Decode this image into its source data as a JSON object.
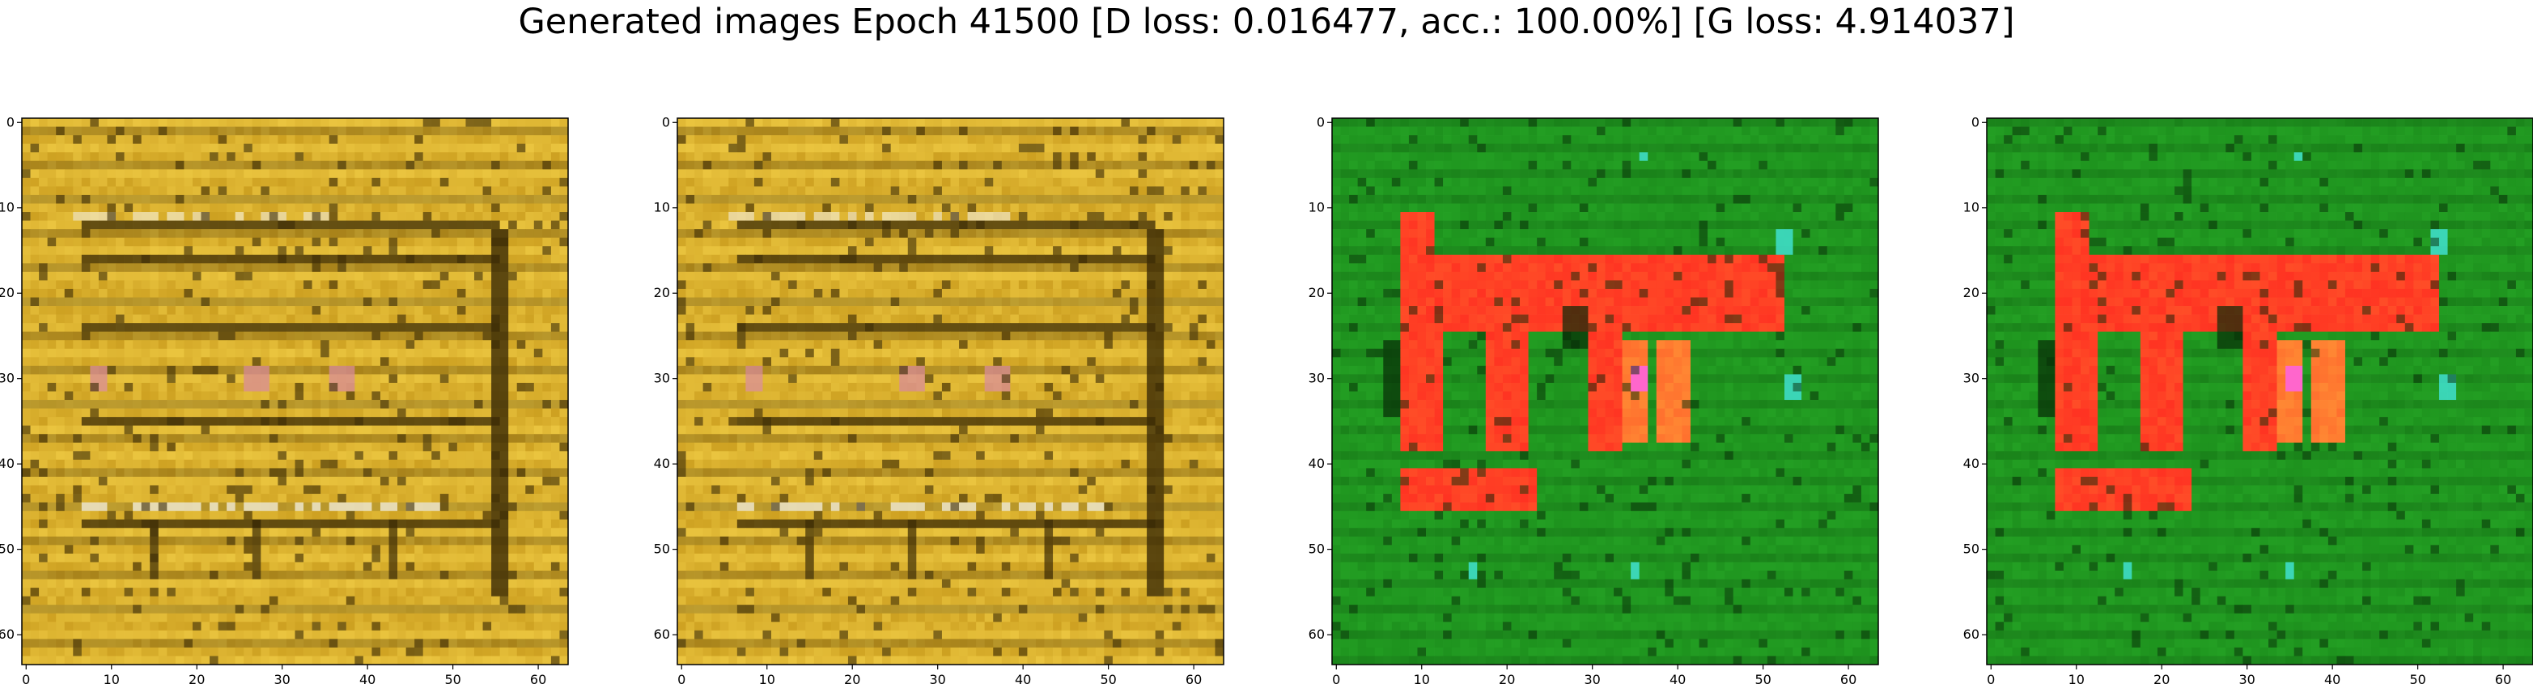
{
  "figure": {
    "title": "Generated images Epoch 41500 [D loss: 0.016477, acc.: 100.00%] [G loss: 4.914037]"
  },
  "chart_data": [
    {
      "type": "heatmap",
      "title": "",
      "xlabel": "",
      "ylabel": "",
      "xlim": [
        -0.5,
        63.5
      ],
      "ylim": [
        63.5,
        -0.5
      ],
      "x_ticks": [
        "0",
        "10",
        "20",
        "30",
        "40",
        "50",
        "60"
      ],
      "y_ticks": [
        "0",
        "10",
        "20",
        "30",
        "40",
        "50",
        "60"
      ],
      "grid": false,
      "palette": {
        "base": "#b8860b",
        "dark": "#3a2a05",
        "light": "#f5d24a",
        "highlight": "#f4f0e0",
        "pink": "#d98aa0"
      }
    },
    {
      "type": "heatmap",
      "title": "",
      "xlabel": "",
      "ylabel": "",
      "xlim": [
        -0.5,
        63.5
      ],
      "ylim": [
        63.5,
        -0.5
      ],
      "x_ticks": [
        "0",
        "10",
        "20",
        "30",
        "40",
        "50",
        "60"
      ],
      "y_ticks": [
        "0",
        "10",
        "20",
        "30",
        "40",
        "50",
        "60"
      ],
      "grid": false,
      "palette": {
        "base": "#b8860b",
        "dark": "#3a2a05",
        "light": "#f5d24a",
        "highlight": "#f4f0e0",
        "pink": "#d98aa0"
      }
    },
    {
      "type": "heatmap",
      "title": "",
      "xlabel": "",
      "ylabel": "",
      "xlim": [
        -0.5,
        63.5
      ],
      "ylim": [
        63.5,
        -0.5
      ],
      "x_ticks": [
        "0",
        "10",
        "20",
        "30",
        "40",
        "50",
        "60"
      ],
      "y_ticks": [
        "0",
        "10",
        "20",
        "30",
        "40",
        "50",
        "60"
      ],
      "grid": false,
      "palette": {
        "base": "#1a8a1a",
        "dark": "#062a06",
        "red": "#ff3322",
        "orange": "#ff8833",
        "cyan": "#40e0d0",
        "pink": "#ff66cc"
      }
    },
    {
      "type": "heatmap",
      "title": "",
      "xlabel": "",
      "ylabel": "",
      "xlim": [
        -0.5,
        63.5
      ],
      "ylim": [
        63.5,
        -0.5
      ],
      "x_ticks": [
        "0",
        "10",
        "20",
        "30",
        "40",
        "50",
        "60"
      ],
      "y_ticks": [
        "0",
        "10",
        "20",
        "30",
        "40",
        "50",
        "60"
      ],
      "grid": false,
      "palette": {
        "base": "#1a8a1a",
        "dark": "#062a06",
        "red": "#ff3322",
        "orange": "#ff8833",
        "cyan": "#40e0d0",
        "pink": "#ff66cc"
      }
    }
  ]
}
